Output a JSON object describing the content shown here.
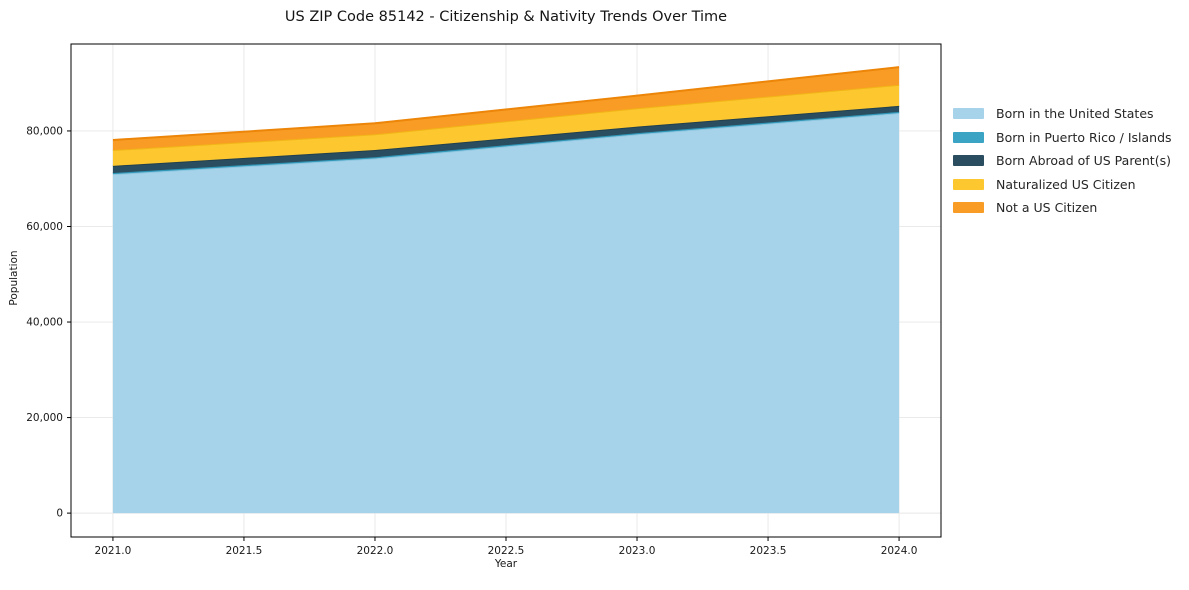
{
  "chart_data": {
    "type": "area",
    "stacked": true,
    "title": "US ZIP Code 85142 - Citizenship & Nativity Trends Over Time",
    "xlabel": "Year",
    "ylabel": "Population",
    "x": [
      2021,
      2022,
      2023,
      2024
    ],
    "series": [
      {
        "name": "Born in the United States",
        "values": [
          70950,
          74250,
          79300,
          83750
        ],
        "color": "#a6d3ea",
        "edge_color": "#8ec6e0"
      },
      {
        "name": "Born in Puerto Rico / Islands",
        "values": [
          250,
          250,
          250,
          250
        ],
        "color": "#3ba4c4",
        "edge_color": "#2f95b5"
      },
      {
        "name": "Born Abroad of US Parent(s)",
        "values": [
          1500,
          1500,
          1350,
          1250
        ],
        "color": "#2a4d60",
        "edge_color": "#21404f"
      },
      {
        "name": "Naturalized US Citizen",
        "values": [
          3300,
          3300,
          3850,
          4400
        ],
        "color": "#fdc72f",
        "edge_color": "#f1b517"
      },
      {
        "name": "Not a US Citizen",
        "values": [
          2100,
          2300,
          2650,
          3700
        ],
        "color": "#f89c25",
        "edge_color": "#ec8508"
      }
    ],
    "totals": [
      78100,
      81600,
      87400,
      93350
    ],
    "xlim": [
      2020.84,
      2024.16
    ],
    "ylim": [
      -5000,
      98200
    ],
    "xticks": {
      "values": [
        2021.0,
        2021.5,
        2022.0,
        2022.5,
        2023.0,
        2023.5,
        2024.0
      ],
      "labels": [
        "2021.0",
        "2021.5",
        "2022.0",
        "2022.5",
        "2023.0",
        "2023.5",
        "2024.0"
      ]
    },
    "yticks": {
      "values": [
        0,
        20000,
        40000,
        60000,
        80000
      ],
      "labels": [
        "0",
        "20,000",
        "40,000",
        "60,000",
        "80,000"
      ]
    },
    "grid": true,
    "grid_color": "#e7e7e7",
    "spine_color": "#000000",
    "tick_label_color": "#191919",
    "legend_position": "right-outside"
  }
}
